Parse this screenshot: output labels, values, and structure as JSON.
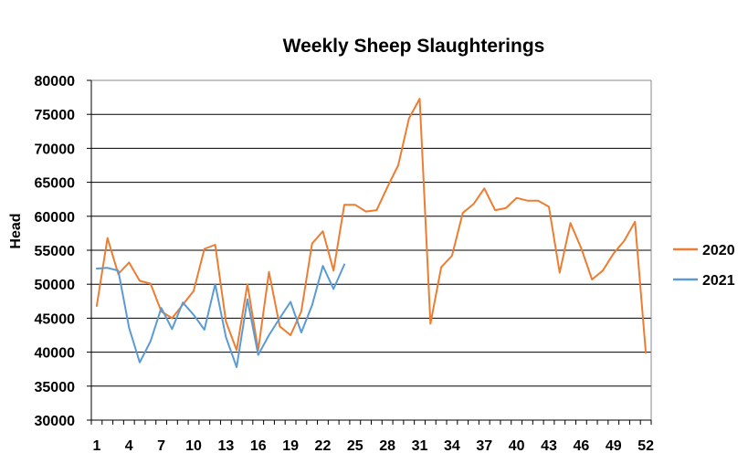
{
  "chart_data": {
    "type": "line",
    "title": "Weekly Sheep Slaughterings",
    "xlabel": "",
    "ylabel": "Head",
    "xlim": [
      1,
      52
    ],
    "ylim": [
      30000,
      80000
    ],
    "x_ticks": [
      1,
      4,
      7,
      10,
      13,
      16,
      19,
      22,
      25,
      28,
      31,
      34,
      37,
      40,
      43,
      46,
      49,
      52
    ],
    "y_ticks": [
      30000,
      35000,
      40000,
      45000,
      50000,
      55000,
      60000,
      65000,
      70000,
      75000,
      80000
    ],
    "grid": "horizontal",
    "legend_position": "right",
    "series": [
      {
        "name": "2020",
        "color": "#ED7D31",
        "x": [
          1,
          2,
          3,
          4,
          5,
          6,
          7,
          8,
          9,
          10,
          11,
          12,
          13,
          14,
          15,
          16,
          17,
          18,
          19,
          20,
          21,
          22,
          23,
          24,
          25,
          26,
          27,
          28,
          29,
          30,
          31,
          32,
          33,
          34,
          35,
          36,
          37,
          38,
          39,
          40,
          41,
          42,
          43,
          44,
          45,
          46,
          47,
          48,
          49,
          50,
          51,
          52
        ],
        "values": [
          46800,
          56800,
          51500,
          53200,
          50500,
          50100,
          46000,
          45000,
          47000,
          49000,
          55200,
          55800,
          44500,
          40300,
          50000,
          40300,
          51800,
          43800,
          42500,
          46000,
          56000,
          57800,
          52000,
          61700,
          61700,
          60700,
          60900,
          64300,
          67500,
          74400,
          77300,
          44200,
          52500,
          54200,
          60500,
          61800,
          64100,
          60900,
          61200,
          62700,
          62300,
          62300,
          61400,
          51700,
          59000,
          55300,
          50700,
          52000,
          54500,
          56400,
          59200,
          39900
        ]
      },
      {
        "name": "2021",
        "color": "#5B9BD5",
        "x": [
          1,
          2,
          3,
          4,
          5,
          6,
          7,
          8,
          9,
          10,
          11,
          12,
          13,
          14,
          15,
          16,
          17,
          18,
          19,
          20,
          21,
          22,
          23,
          24
        ],
        "values": [
          52300,
          52400,
          52000,
          43600,
          38500,
          41600,
          46500,
          43400,
          47300,
          45500,
          43300,
          50000,
          42200,
          37800,
          47800,
          39600,
          42500,
          45000,
          47400,
          42900,
          46900,
          52700,
          49300,
          52900
        ]
      }
    ]
  }
}
